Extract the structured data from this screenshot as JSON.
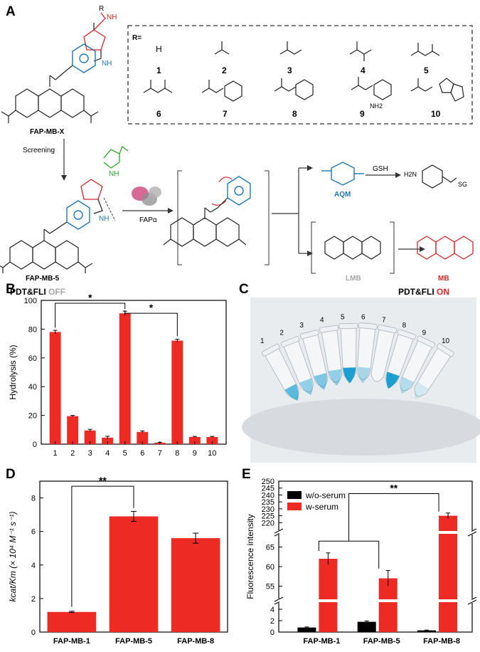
{
  "panel_labels": {
    "a": "A",
    "b": "B",
    "c": "C",
    "d": "D",
    "e": "E"
  },
  "scheme": {
    "probe_general": "FAP-MB-X",
    "r_prefix": "R=",
    "r_atom": "R",
    "nh": "NH",
    "r_groups": [
      {
        "num": "1",
        "atom": "H"
      },
      {
        "num": "2"
      },
      {
        "num": "3"
      },
      {
        "num": "4"
      },
      {
        "num": "5"
      },
      {
        "num": "6"
      },
      {
        "num": "7"
      },
      {
        "num": "8"
      },
      {
        "num": "9",
        "nh2": "NH2"
      },
      {
        "num": "10"
      }
    ],
    "screening": "Screening",
    "probe_selected": "FAP-MB-5",
    "enzyme": "FAPα",
    "aqm": "AQM",
    "gsh": "GSH",
    "sg_product_left": "H2N",
    "sg_product_right": "SG",
    "lmb": "LMB",
    "mb": "MB",
    "off_label_1": "PDT&FLI ",
    "off_label_2": "OFF",
    "on_label_1": "PDT&FLI ",
    "on_label_2": "ON"
  },
  "colors": {
    "bar": "#ee2a24",
    "accent_red": "#d62728",
    "accent_blue": "#1f77b4",
    "grey": "#a6a6a6",
    "methylene_blue": "#1d9fd1"
  },
  "tube_labels": [
    "1",
    "2",
    "3",
    "4",
    "5",
    "6",
    "7",
    "8",
    "9",
    "10"
  ],
  "chart_data": [
    {
      "panel": "B",
      "type": "bar",
      "categories": [
        "1",
        "2",
        "3",
        "4",
        "5",
        "6",
        "7",
        "8",
        "9",
        "10"
      ],
      "values": [
        78,
        19.5,
        9.5,
        4.5,
        91,
        8.5,
        1,
        72,
        5,
        5
      ],
      "errors": [
        1.2,
        0.5,
        0.8,
        1,
        1.5,
        0.7,
        0.3,
        1,
        0.4,
        0.4
      ],
      "ylabel": "Hydrolysis (%)",
      "xlabel": "",
      "ylim": [
        0,
        100
      ],
      "yticks": [
        "0",
        "20",
        "40",
        "60",
        "80",
        "100"
      ],
      "significance": [
        {
          "from": "1",
          "to": "5",
          "label": "*"
        },
        {
          "from": "5",
          "to": "8",
          "label": "*"
        }
      ]
    },
    {
      "panel": "D",
      "type": "bar",
      "categories": [
        "FAP-MB-1",
        "FAP-MB-5",
        "FAP-MB-8"
      ],
      "values": [
        1.2,
        6.9,
        5.6
      ],
      "errors": [
        0.04,
        0.3,
        0.3
      ],
      "ylabel": "kcat/Km (× 10⁴ M⁻¹ s⁻¹)",
      "ylim": [
        0,
        9
      ],
      "yticks": [
        "0",
        "2",
        "4",
        "6",
        "8"
      ],
      "significance": [
        {
          "from": "FAP-MB-1",
          "to": "FAP-MB-5",
          "label": "**"
        }
      ]
    },
    {
      "panel": "E",
      "type": "bar",
      "axis_break": true,
      "categories": [
        "FAP-MB-1",
        "FAP-MB-5",
        "FAP-MB-8"
      ],
      "series": [
        {
          "name": "w/o-serum",
          "color": "#000000",
          "values": [
            0.8,
            1.8,
            0.3
          ],
          "errors": [
            0.1,
            0.15,
            0.05
          ]
        },
        {
          "name": "w-serum",
          "color": "#ee2a24",
          "values": [
            62,
            57,
            225
          ],
          "errors": [
            1.5,
            2,
            2
          ]
        }
      ],
      "ylabel": "Fluorescence intensity",
      "yticks_low": [
        "0",
        "2",
        "4"
      ],
      "yticks_mid": [
        "55",
        "60",
        "65"
      ],
      "yticks_high": [
        "220",
        "225",
        "230",
        "235",
        "240",
        "245",
        "250"
      ],
      "significance": [
        {
          "label": "**"
        }
      ]
    }
  ]
}
